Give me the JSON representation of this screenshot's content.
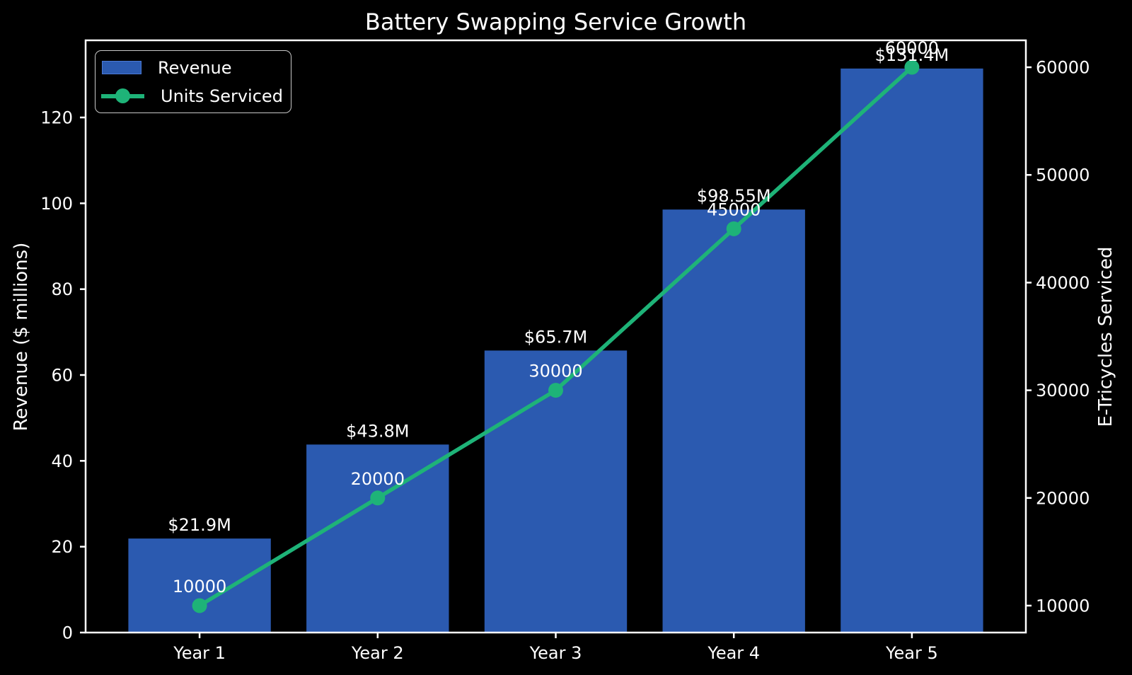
{
  "title": "Battery Swapping Service Growth",
  "colors": {
    "background": "#000000",
    "text": "#ffffff",
    "bar_blue": "#2b5ab0",
    "line_green": "#1eb378",
    "legend_border": "#c8c8c8"
  },
  "legend": {
    "items": [
      {
        "label": "Revenue",
        "swatch": "bar"
      },
      {
        "label": "Units Serviced",
        "swatch": "line-marker"
      }
    ]
  },
  "chart_data": {
    "type": "combo bar+line, dual y-axis",
    "title": "Battery Swapping Service Growth",
    "categories": [
      "Year 1",
      "Year 2",
      "Year 3",
      "Year 4",
      "Year 5"
    ],
    "series": [
      {
        "name": "Revenue",
        "type": "bar",
        "axis": "left",
        "color_key": "bar_blue",
        "values": [
          21.9,
          43.8,
          65.7,
          98.55,
          131.4
        ],
        "value_labels": [
          "$21.9M",
          "$43.8M",
          "$65.7M",
          "$98.55M",
          "$131.4M"
        ]
      },
      {
        "name": "Units Serviced",
        "type": "line",
        "axis": "right",
        "color_key": "line_green",
        "values": [
          10000,
          20000,
          30000,
          45000,
          60000
        ],
        "value_labels": [
          "10000",
          "20000",
          "30000",
          "45000",
          "60000"
        ]
      }
    ],
    "axes": {
      "left": {
        "label": "Revenue ($ millions)",
        "ticks": [
          0,
          20,
          40,
          60,
          80,
          100,
          120
        ],
        "range": [
          0,
          137.97
        ]
      },
      "right": {
        "label": "E-Tricycles Serviced",
        "ticks": [
          10000,
          20000,
          30000,
          40000,
          50000,
          60000
        ],
        "range": [
          7500,
          62500
        ]
      },
      "x": {
        "range": [
          -0.64,
          4.64
        ]
      }
    },
    "legend_position": "upper-left",
    "grid": false,
    "background": "black"
  }
}
